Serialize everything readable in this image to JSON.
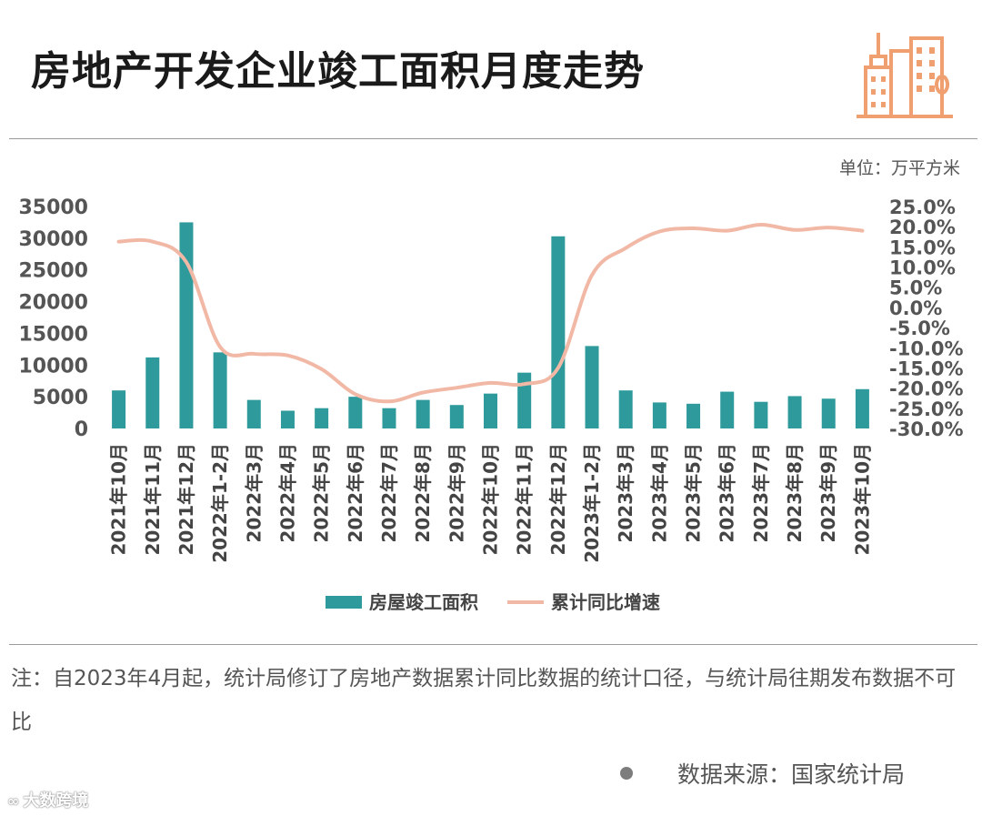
{
  "title": "房地产开发企业竣工面积月度走势",
  "unit": "单位：万平方米",
  "note": "注：自2023年4月起，统计局修订了房地产数据累计同比数据的统计口径，与统计局往期发布数据不可比",
  "source": "数据来源：国家统计局",
  "brand": "大数跨境",
  "colors": {
    "bar": "#2e9a9c",
    "line": "#f2b8a6",
    "logo": "#f0a070"
  },
  "chart_data": {
    "type": "bar+line",
    "categories": [
      "2021年10月",
      "2021年11月",
      "2021年12月",
      "2022年1-2月",
      "2022年3月",
      "2022年4月",
      "2022年5月",
      "2022年6月",
      "2022年7月",
      "2022年8月",
      "2022年9月",
      "2022年10月",
      "2022年11月",
      "2022年12月",
      "2023年1-2月",
      "2023年3月",
      "2023年4月",
      "2023年5月",
      "2023年6月",
      "2023年7月",
      "2023年8月",
      "2023年9月",
      "2023年10月"
    ],
    "series": [
      {
        "name": "房屋竣工面积",
        "type": "bar",
        "axis": "left",
        "values": [
          6000,
          11200,
          32500,
          12000,
          4500,
          2800,
          3200,
          5000,
          3200,
          4500,
          3700,
          5500,
          8800,
          30300,
          13000,
          6000,
          4100,
          3900,
          5800,
          4200,
          5100,
          4700,
          6200
        ]
      },
      {
        "name": "累计同比增速",
        "type": "line",
        "axis": "right",
        "values": [
          16.3,
          16.3,
          11.2,
          -9.8,
          -11.5,
          -11.9,
          -15.3,
          -21.5,
          -23.3,
          -21.1,
          -19.9,
          -18.7,
          -19.0,
          -15.0,
          8.0,
          14.7,
          18.8,
          19.6,
          19.0,
          20.5,
          19.2,
          19.8,
          19.0
        ]
      }
    ],
    "y_left": {
      "min": 0,
      "max": 35000,
      "ticks": [
        "0",
        "5000",
        "10000",
        "15000",
        "20000",
        "25000",
        "30000",
        "35000"
      ]
    },
    "y_right": {
      "min": -30,
      "max": 25,
      "ticks": [
        "-30.0%",
        "-25.0%",
        "-20.0%",
        "-15.0%",
        "-10.0%",
        "-5.0%",
        "0.0%",
        "5.0%",
        "10.0%",
        "15.0%",
        "20.0%",
        "25.0%"
      ]
    },
    "legend": [
      "房屋竣工面积",
      "累计同比增速"
    ],
    "legend_position": "bottom"
  }
}
